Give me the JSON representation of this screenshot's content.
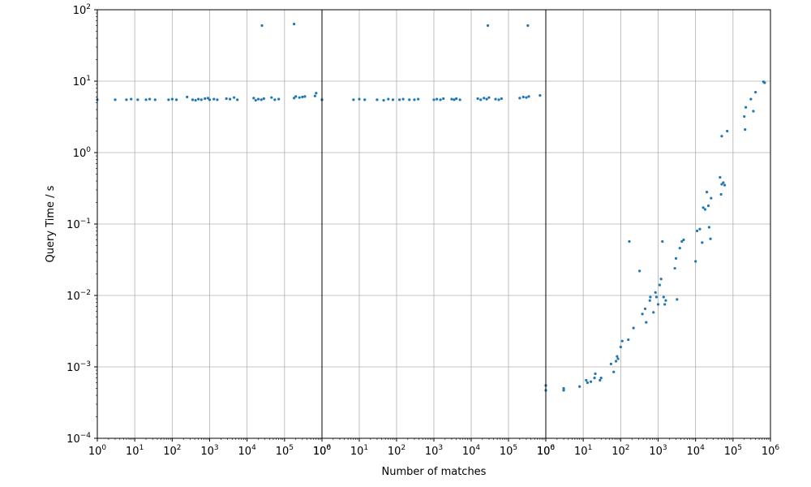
{
  "chart_data": [
    {
      "type": "scatter",
      "panel": "left",
      "xscale": "log",
      "yscale": "log",
      "xlim": [
        1,
        1000000
      ],
      "ylim": [
        0.0001,
        100
      ],
      "ylabel": "Query Time / s",
      "xlabel": "",
      "grid": true,
      "color": "#1f77b4",
      "series": [
        {
          "points": [
            [
              1,
              5.5
            ],
            [
              3,
              5.5
            ],
            [
              6,
              5.5
            ],
            [
              8,
              5.6
            ],
            [
              12,
              5.5
            ],
            [
              20,
              5.5
            ],
            [
              25,
              5.6
            ],
            [
              35,
              5.5
            ],
            [
              80,
              5.5
            ],
            [
              100,
              5.6
            ],
            [
              130,
              5.5
            ],
            [
              250,
              6.0
            ],
            [
              350,
              5.5
            ],
            [
              420,
              5.4
            ],
            [
              500,
              5.6
            ],
            [
              600,
              5.5
            ],
            [
              750,
              5.7
            ],
            [
              900,
              5.8
            ],
            [
              1000,
              5.5
            ],
            [
              1300,
              5.6
            ],
            [
              1600,
              5.5
            ],
            [
              2800,
              5.7
            ],
            [
              3500,
              5.6
            ],
            [
              4500,
              5.9
            ],
            [
              5500,
              5.5
            ],
            [
              15000,
              5.8
            ],
            [
              17000,
              5.4
            ],
            [
              20000,
              5.6
            ],
            [
              24000,
              5.5
            ],
            [
              28000,
              5.7
            ],
            [
              45000,
              5.9
            ],
            [
              55000,
              5.5
            ],
            [
              70000,
              5.6
            ],
            [
              180000,
              5.8
            ],
            [
              200000,
              6.1
            ],
            [
              250000,
              5.9
            ],
            [
              300000,
              6.0
            ],
            [
              350000,
              6.1
            ],
            [
              650000,
              6.2
            ],
            [
              700000,
              6.8
            ],
            [
              25000,
              60
            ],
            [
              180000,
              63
            ]
          ]
        }
      ]
    },
    {
      "type": "scatter",
      "panel": "middle",
      "xscale": "log",
      "yscale": "log",
      "xlim": [
        1,
        1000000
      ],
      "ylim": [
        0.0001,
        100
      ],
      "xlabel": "Number of matches",
      "ylabel": "",
      "grid": true,
      "color": "#1f77b4",
      "series": [
        {
          "points": [
            [
              1,
              5.5
            ],
            [
              7,
              5.5
            ],
            [
              10,
              5.6
            ],
            [
              14,
              5.5
            ],
            [
              30,
              5.5
            ],
            [
              45,
              5.4
            ],
            [
              60,
              5.6
            ],
            [
              80,
              5.5
            ],
            [
              120,
              5.5
            ],
            [
              150,
              5.6
            ],
            [
              220,
              5.5
            ],
            [
              300,
              5.5
            ],
            [
              380,
              5.6
            ],
            [
              1000,
              5.5
            ],
            [
              1200,
              5.6
            ],
            [
              1500,
              5.5
            ],
            [
              1800,
              5.7
            ],
            [
              3000,
              5.6
            ],
            [
              3500,
              5.5
            ],
            [
              4000,
              5.7
            ],
            [
              5000,
              5.5
            ],
            [
              15000,
              5.7
            ],
            [
              18000,
              5.5
            ],
            [
              22000,
              5.8
            ],
            [
              26000,
              5.6
            ],
            [
              30000,
              5.9
            ],
            [
              45000,
              5.6
            ],
            [
              55000,
              5.5
            ],
            [
              65000,
              5.7
            ],
            [
              200000,
              5.8
            ],
            [
              250000,
              6.0
            ],
            [
              300000,
              5.9
            ],
            [
              350000,
              6.1
            ],
            [
              700000,
              6.3
            ],
            [
              28000,
              60
            ],
            [
              330000,
              60
            ]
          ]
        }
      ]
    },
    {
      "type": "scatter",
      "panel": "right",
      "xscale": "log",
      "yscale": "log",
      "xlim": [
        1,
        1000000
      ],
      "ylim": [
        0.0001,
        100
      ],
      "xlabel": "",
      "ylabel": "",
      "grid": true,
      "color": "#1f77b4",
      "series": [
        {
          "points": [
            [
              1,
              0.00055
            ],
            [
              1,
              0.00047
            ],
            [
              3,
              0.00047
            ],
            [
              3,
              0.0005
            ],
            [
              8,
              0.00053
            ],
            [
              12,
              0.00065
            ],
            [
              13,
              0.0006
            ],
            [
              16,
              0.00062
            ],
            [
              20,
              0.0007
            ],
            [
              21,
              0.0008
            ],
            [
              28,
              0.00065
            ],
            [
              30,
              0.0007
            ],
            [
              55,
              0.0011
            ],
            [
              65,
              0.00085
            ],
            [
              75,
              0.0012
            ],
            [
              80,
              0.0014
            ],
            [
              85,
              0.0013
            ],
            [
              100,
              0.0019
            ],
            [
              110,
              0.0023
            ],
            [
              160,
              0.0024
            ],
            [
              170,
              0.057
            ],
            [
              220,
              0.0035
            ],
            [
              320,
              0.022
            ],
            [
              380,
              0.0055
            ],
            [
              450,
              0.0065
            ],
            [
              480,
              0.0042
            ],
            [
              600,
              0.0085
            ],
            [
              620,
              0.0095
            ],
            [
              750,
              0.0058
            ],
            [
              850,
              0.011
            ],
            [
              900,
              0.0095
            ],
            [
              1000,
              0.0075
            ],
            [
              1100,
              0.014
            ],
            [
              1200,
              0.017
            ],
            [
              1300,
              0.057
            ],
            [
              1400,
              0.0095
            ],
            [
              1500,
              0.0075
            ],
            [
              1600,
              0.0085
            ],
            [
              2800,
              0.024
            ],
            [
              3000,
              0.033
            ],
            [
              3200,
              0.0088
            ],
            [
              3800,
              0.046
            ],
            [
              4300,
              0.057
            ],
            [
              4800,
              0.06
            ],
            [
              10000,
              0.03
            ],
            [
              11000,
              0.08
            ],
            [
              13000,
              0.085
            ],
            [
              15000,
              0.055
            ],
            [
              16000,
              0.17
            ],
            [
              18000,
              0.16
            ],
            [
              20000,
              0.28
            ],
            [
              22000,
              0.18
            ],
            [
              23000,
              0.09
            ],
            [
              25000,
              0.062
            ],
            [
              26000,
              0.23
            ],
            [
              45000,
              0.45
            ],
            [
              50000,
              0.36
            ],
            [
              48000,
              0.26
            ],
            [
              55000,
              0.38
            ],
            [
              60000,
              0.35
            ],
            [
              50000,
              1.7
            ],
            [
              70000,
              2.0
            ],
            [
              200000,
              3.2
            ],
            [
              210000,
              2.1
            ],
            [
              220000,
              4.3
            ],
            [
              300000,
              5.6
            ],
            [
              350000,
              3.8
            ],
            [
              400000,
              7.0
            ],
            [
              650000,
              9.8
            ],
            [
              700000,
              9.5
            ]
          ]
        }
      ]
    }
  ],
  "axes": {
    "x_tick_labels": [
      "10^0",
      "10^1",
      "10^2",
      "10^3",
      "10^4",
      "10^5",
      "10^6"
    ],
    "y_tick_labels": [
      "10^-4",
      "10^-3",
      "10^-2",
      "10^-1",
      "10^0",
      "10^1",
      "10^2"
    ]
  }
}
